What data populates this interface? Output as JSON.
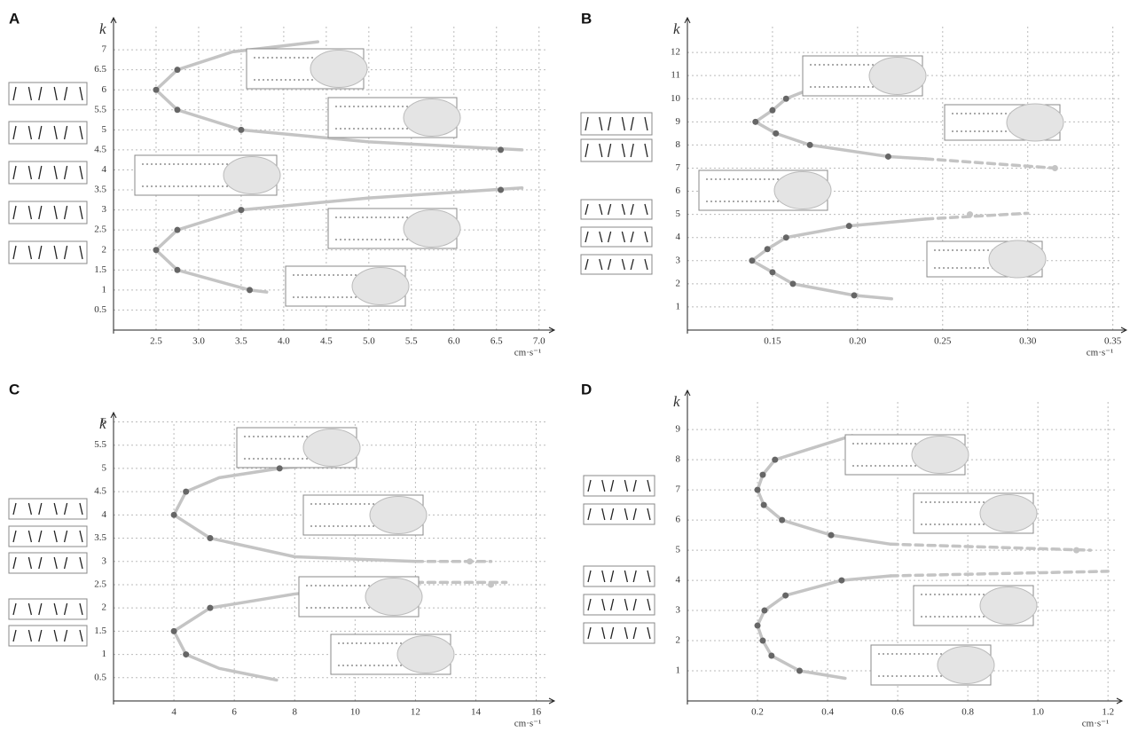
{
  "chart_data": [
    {
      "type": "scatter",
      "panel": "A",
      "y_label": "k",
      "x_label": "cm·s⁻¹",
      "xlim": [
        2,
        7.18
      ],
      "ylim": [
        0,
        7.8
      ],
      "xticks": [
        2.5,
        {
          "value": 3,
          "label": "3.0"
        },
        3.5,
        {
          "value": 4,
          "label": "4.0"
        },
        4.5,
        {
          "value": 5,
          "label": "5.0"
        },
        5.5,
        {
          "value": 6,
          "label": "6.0"
        },
        6.5,
        {
          "value": 7,
          "label": "7.0"
        }
      ],
      "yticks": [
        0.5,
        1,
        1.5,
        2,
        2.5,
        3,
        3.5,
        4,
        4.5,
        5,
        5.5,
        6,
        6.5,
        7
      ],
      "grid": true,
      "point_color": "#666",
      "curve_color": "#c4c4c4",
      "points": {
        "x": [
          2.75,
          2.5,
          2.75,
          3.5,
          6.55,
          6.55,
          3.5,
          2.75,
          2.5,
          2.75,
          3.6
        ],
        "y": [
          6.5,
          6,
          5.5,
          5,
          4.5,
          3.5,
          3,
          2.5,
          2,
          1.5,
          1
        ]
      },
      "curves": [
        {
          "style": "solid",
          "x": [
            4.4,
            3.4,
            2.75,
            2.5,
            2.75,
            3.5,
            5,
            6.8
          ],
          "y": [
            7.2,
            6.95,
            6.5,
            6,
            5.5,
            5,
            4.7,
            4.5
          ]
        },
        {
          "style": "solid",
          "x": [
            6.8,
            5,
            3.5,
            2.75,
            2.5,
            2.75,
            3.6,
            3.8
          ],
          "y": [
            3.55,
            3.3,
            3,
            2.5,
            2,
            1.5,
            1,
            0.95
          ]
        }
      ]
    },
    {
      "type": "scatter",
      "panel": "B",
      "y_label": "k",
      "x_label": "cm·s⁻¹",
      "xlim": [
        0.1,
        0.358
      ],
      "ylim": [
        0,
        13.5
      ],
      "xticks": [
        0.15,
        {
          "value": 0.2,
          "label": "0.20"
        },
        0.25,
        {
          "value": 0.3,
          "label": "0.30"
        },
        0.35
      ],
      "yticks": [
        1,
        2,
        3,
        4,
        5,
        6,
        7,
        8,
        9,
        10,
        11,
        12
      ],
      "grid": true,
      "point_color": "#666",
      "curve_color": "#c4c4c4",
      "points": {
        "x": [
          0.158,
          0.15,
          0.14,
          0.152,
          0.172,
          0.218,
          0.195,
          0.158,
          0.147,
          0.138,
          0.15,
          0.162,
          0.198
        ],
        "y": [
          10,
          9.5,
          9,
          8.5,
          8,
          7.5,
          4.5,
          4,
          3.5,
          3,
          2.5,
          2,
          1.5
        ]
      },
      "pale_points": {
        "x": [
          0.316,
          0.266
        ],
        "y": [
          7,
          5
        ]
      },
      "curves": [
        {
          "style": "solid",
          "x": [
            0.175,
            0.158,
            0.15,
            0.14,
            0.152,
            0.172,
            0.218,
            0.24
          ],
          "y": [
            10.5,
            10,
            9.5,
            9,
            8.5,
            8,
            7.5,
            7.4
          ]
        },
        {
          "style": "dashed",
          "x": [
            0.24,
            0.316
          ],
          "y": [
            7.4,
            7
          ]
        },
        {
          "style": "solid",
          "x": [
            0.24,
            0.195,
            0.158,
            0.147,
            0.138,
            0.15,
            0.162,
            0.198,
            0.22
          ],
          "y": [
            4.8,
            4.5,
            4,
            3.5,
            3,
            2.5,
            2,
            1.5,
            1.35
          ]
        },
        {
          "style": "dashed",
          "x": [
            0.24,
            0.3
          ],
          "y": [
            4.8,
            5.05
          ]
        }
      ]
    },
    {
      "type": "scatter",
      "panel": "C",
      "y_label": "k",
      "x_label": "cm·s⁻¹",
      "xlim": [
        2,
        16.6
      ],
      "ylim": [
        0,
        6.2
      ],
      "xticks": [
        4,
        6,
        8,
        10,
        12,
        14,
        16
      ],
      "yticks": [
        0.5,
        1,
        1.5,
        2,
        2.5,
        3,
        3.5,
        4,
        4.5,
        5,
        5.5,
        6
      ],
      "grid": true,
      "point_color": "#666",
      "curve_color": "#c4c4c4",
      "points": {
        "x": [
          7.5,
          4.4,
          4,
          5.2,
          5.2,
          4,
          4.4
        ],
        "y": [
          5,
          4.5,
          4,
          3.5,
          2,
          1.5,
          1
        ]
      },
      "pale_points": {
        "x": [
          13.8,
          14.5
        ],
        "y": [
          3,
          2.5
        ]
      },
      "curves": [
        {
          "style": "solid",
          "x": [
            8.3,
            7.5,
            5.5,
            4.4,
            4,
            5.2,
            8,
            12
          ],
          "y": [
            5.05,
            5,
            4.8,
            4.5,
            4,
            3.5,
            3.1,
            3
          ]
        },
        {
          "style": "dashed",
          "x": [
            12,
            14.5
          ],
          "y": [
            3,
            3
          ]
        },
        {
          "style": "solid",
          "x": [
            12,
            8,
            5.2,
            4,
            4.4,
            5.5,
            7.4
          ],
          "y": [
            2.55,
            2.3,
            2,
            1.5,
            1,
            0.7,
            0.45
          ]
        },
        {
          "style": "dashed",
          "x": [
            12,
            15
          ],
          "y": [
            2.55,
            2.55
          ]
        }
      ]
    },
    {
      "type": "scatter",
      "panel": "D",
      "y_label": "k",
      "x_label": "cm·s⁻¹",
      "xlim": [
        0,
        1.24
      ],
      "ylim": [
        0,
        10.3
      ],
      "xticks": [
        0.2,
        0.4,
        0.6,
        0.8,
        {
          "value": 1,
          "label": "1.0"
        },
        1.2
      ],
      "yticks": [
        1,
        2,
        3,
        4,
        5,
        6,
        7,
        8,
        9
      ],
      "grid": true,
      "point_color": "#666",
      "curve_color": "#c4c4c4",
      "points": {
        "x": [
          0.25,
          0.215,
          0.2,
          0.218,
          0.27,
          0.41,
          0.44,
          0.28,
          0.22,
          0.2,
          0.215,
          0.24,
          0.32
        ],
        "y": [
          8,
          7.5,
          7,
          6.5,
          6,
          5.5,
          4,
          3.5,
          3,
          2.5,
          2,
          1.5,
          1
        ]
      },
      "pale_points": {
        "x": [
          1.11
        ],
        "y": [
          5
        ]
      },
      "curves": [
        {
          "style": "solid",
          "x": [
            0.47,
            0.25,
            0.215,
            0.2,
            0.218,
            0.27,
            0.41,
            0.58
          ],
          "y": [
            8.8,
            8,
            7.5,
            7,
            6.5,
            6,
            5.5,
            5.2
          ]
        },
        {
          "style": "dashed",
          "x": [
            0.58,
            1.15
          ],
          "y": [
            5.2,
            5
          ]
        },
        {
          "style": "solid",
          "x": [
            0.58,
            0.44,
            0.28,
            0.22,
            0.2,
            0.215,
            0.24,
            0.32,
            0.45
          ],
          "y": [
            4.15,
            4,
            3.5,
            3,
            2.5,
            2,
            1.5,
            1,
            0.75
          ]
        },
        {
          "style": "dashed",
          "x": [
            0.58,
            1.2
          ],
          "y": [
            4.15,
            4.3
          ]
        }
      ]
    }
  ]
}
